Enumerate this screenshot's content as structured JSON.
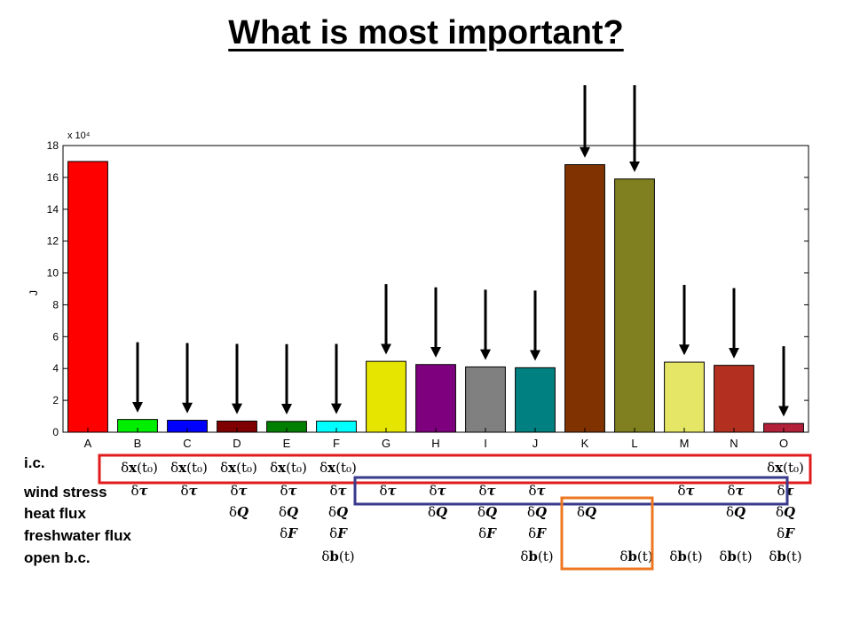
{
  "title": "What is most important?",
  "row_labels": [
    "i.c.",
    "wind stress",
    "heat flux",
    "freshwater flux",
    "open b.c."
  ],
  "symbols": {
    "ic": "δx(t₀)",
    "wind": "δτ",
    "heat": "δQ",
    "fresh": "δF",
    "ob": "δb(t)"
  },
  "chart_data": {
    "type": "bar",
    "categories": [
      "A",
      "B",
      "C",
      "D",
      "E",
      "F",
      "G",
      "H",
      "I",
      "J",
      "K",
      "L",
      "M",
      "N",
      "O"
    ],
    "values": [
      170000,
      8000,
      7500,
      7000,
      6800,
      7000,
      44500,
      42500,
      41000,
      40500,
      168000,
      159000,
      44000,
      42000,
      5500
    ],
    "colors": [
      "#ff0000",
      "#00ee00",
      "#0000ff",
      "#7f0000",
      "#007f00",
      "#00ffff",
      "#e5e500",
      "#7f007f",
      "#808080",
      "#008080",
      "#803300",
      "#808020",
      "#e5e566",
      "#b33020",
      "#b3203a"
    ],
    "xlabel": "",
    "ylabel": "J",
    "exponent_label": "x 10⁴",
    "ylim": [
      0,
      180000
    ],
    "yticks": [
      0,
      20000,
      40000,
      60000,
      80000,
      100000,
      120000,
      140000,
      160000,
      180000
    ],
    "ytick_labels": [
      "0",
      "2",
      "4",
      "6",
      "8",
      "10",
      "12",
      "14",
      "16",
      "18"
    ],
    "arrow_categories": [
      "B",
      "C",
      "D",
      "E",
      "F",
      "G",
      "H",
      "I",
      "J",
      "K",
      "L",
      "M",
      "N",
      "O"
    ],
    "tall_arrow_categories": [
      "K",
      "L"
    ],
    "forcings": {
      "A": [],
      "B": [
        "ic",
        "wind"
      ],
      "C": [
        "ic",
        "wind"
      ],
      "D": [
        "ic",
        "wind",
        "heat"
      ],
      "E": [
        "ic",
        "wind",
        "heat",
        "fresh"
      ],
      "F": [
        "ic",
        "wind",
        "heat",
        "fresh",
        "ob"
      ],
      "G": [
        "wind"
      ],
      "H": [
        "wind",
        "heat"
      ],
      "I": [
        "wind",
        "heat",
        "fresh"
      ],
      "J": [
        "wind",
        "heat",
        "fresh",
        "ob"
      ],
      "K": [
        "heat"
      ],
      "L": [
        "ob"
      ],
      "M": [
        "wind",
        "ob"
      ],
      "N": [
        "wind",
        "heat",
        "ob"
      ],
      "O": [
        "ic",
        "wind",
        "heat",
        "fresh",
        "ob"
      ]
    },
    "highlight_boxes": [
      {
        "color": "#e11b1b",
        "row": "ic",
        "from": "B",
        "to": "O"
      },
      {
        "color": "#3a3a8c",
        "row": "wind",
        "from": "G",
        "to": "O"
      },
      {
        "color": "#ee7722",
        "rows": [
          "heat",
          "ob"
        ],
        "from": "K",
        "to": "L"
      }
    ]
  }
}
